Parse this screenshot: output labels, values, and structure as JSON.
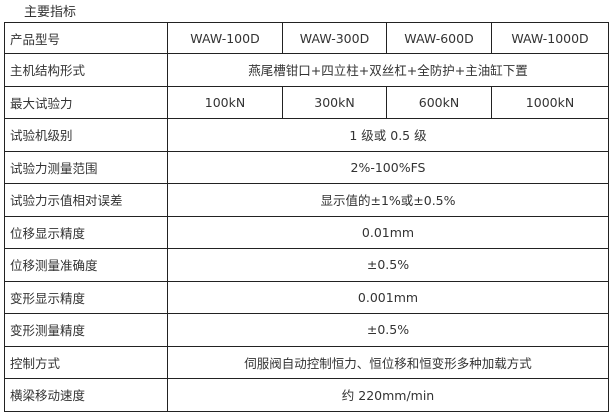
{
  "title": "主要指标",
  "header": {
    "label": "产品型号",
    "models": [
      "WAW-100D",
      "WAW-300D",
      "WAW-600D",
      "WAW-1000D"
    ]
  },
  "rows": [
    {
      "label": "主机结构形式",
      "value": "燕尾槽钳口+四立柱+双丝杠+全防护+主油缸下置"
    },
    {
      "label": "最大试验力",
      "values": [
        "100kN",
        "300kN",
        "600kN",
        "1000kN"
      ]
    },
    {
      "label": "试验机级别",
      "value": "1 级或 0.5 级"
    },
    {
      "label": "试验力测量范围",
      "value": "2%-100%FS"
    },
    {
      "label": "试验力示值相对误差",
      "value": "显示值的±1%或±0.5%"
    },
    {
      "label": "位移显示精度",
      "value": "0.01mm"
    },
    {
      "label": "位移测量准确度",
      "value": "±0.5%"
    },
    {
      "label": "变形显示精度",
      "value": "0.001mm"
    },
    {
      "label": "变形测量精度",
      "value": "±0.5%"
    },
    {
      "label": "控制方式",
      "value": "伺服阀自动控制恒力、恒位移和恒变形多种加载方式"
    },
    {
      "label": "横梁移动速度",
      "value": "约 220mm/min"
    }
  ]
}
